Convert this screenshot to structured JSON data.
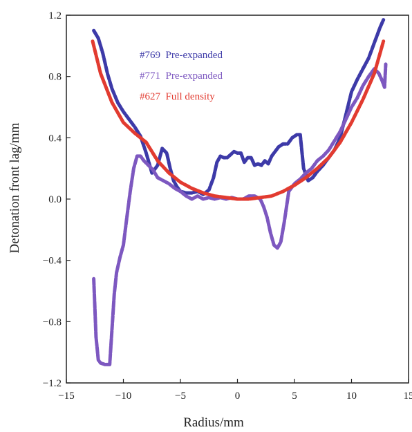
{
  "chart_data": {
    "type": "line",
    "xlabel": "Radius/mm",
    "ylabel": "Detonation front lag/mm",
    "xlim": [
      -15,
      15
    ],
    "ylim": [
      -1.2,
      1.2
    ],
    "xticks": [
      -15,
      -10,
      -5,
      0,
      5,
      10,
      15
    ],
    "yticks": [
      -1.2,
      -0.8,
      -0.4,
      0.0,
      0.4,
      0.8,
      1.2
    ],
    "xtick_labels": [
      "−15",
      "−10",
      "−5",
      "0",
      "5",
      "10",
      "15"
    ],
    "ytick_labels": [
      "−1.2",
      "−0.8",
      "−0.4",
      "0.0",
      "0.4",
      "0.8",
      "1.2"
    ],
    "grid": false,
    "legend_position": "top-center",
    "series": [
      {
        "name": "#769  Pre-expanded",
        "color": "#3d3aa8",
        "x": [
          -12.6,
          -12.2,
          -11.8,
          -11.4,
          -11.0,
          -10.5,
          -10.0,
          -9.5,
          -9.0,
          -8.5,
          -8.0,
          -7.5,
          -7.0,
          -6.6,
          -6.2,
          -5.9,
          -5.6,
          -5.3,
          -5.0,
          -4.5,
          -4.0,
          -3.5,
          -3.0,
          -2.5,
          -2.1,
          -1.8,
          -1.5,
          -1.2,
          -0.9,
          -0.6,
          -0.3,
          0.0,
          0.3,
          0.6,
          0.9,
          1.2,
          1.5,
          1.8,
          2.1,
          2.4,
          2.7,
          3.0,
          3.3,
          3.6,
          4.0,
          4.4,
          4.8,
          5.2,
          5.5,
          5.8,
          6.2,
          6.6,
          7.0,
          7.5,
          8.0,
          8.5,
          9.0,
          9.5,
          10.0,
          10.5,
          11.0,
          11.5,
          12.0,
          12.5,
          12.8
        ],
        "y": [
          1.1,
          1.05,
          0.95,
          0.82,
          0.72,
          0.63,
          0.57,
          0.52,
          0.47,
          0.41,
          0.3,
          0.17,
          0.22,
          0.33,
          0.3,
          0.2,
          0.12,
          0.08,
          0.05,
          0.04,
          0.04,
          0.05,
          0.03,
          0.06,
          0.14,
          0.24,
          0.28,
          0.27,
          0.27,
          0.29,
          0.31,
          0.3,
          0.3,
          0.24,
          0.27,
          0.27,
          0.22,
          0.23,
          0.22,
          0.25,
          0.23,
          0.28,
          0.31,
          0.34,
          0.36,
          0.36,
          0.4,
          0.42,
          0.42,
          0.2,
          0.12,
          0.14,
          0.18,
          0.22,
          0.27,
          0.32,
          0.4,
          0.55,
          0.7,
          0.78,
          0.85,
          0.92,
          1.02,
          1.12,
          1.17
        ]
      },
      {
        "name": "#771  Pre-expanded",
        "color": "#7d58c0",
        "x": [
          -12.6,
          -12.4,
          -12.2,
          -12.0,
          -11.6,
          -11.2,
          -11.0,
          -10.8,
          -10.6,
          -10.3,
          -10.0,
          -9.7,
          -9.4,
          -9.1,
          -8.8,
          -8.5,
          -8.2,
          -7.8,
          -7.4,
          -7.0,
          -6.5,
          -6.0,
          -5.5,
          -5.0,
          -4.5,
          -4.0,
          -3.5,
          -3.0,
          -2.5,
          -2.0,
          -1.5,
          -1.0,
          -0.5,
          0.0,
          0.5,
          1.0,
          1.5,
          2.0,
          2.3,
          2.6,
          2.9,
          3.2,
          3.5,
          3.8,
          4.1,
          4.5,
          5.0,
          5.5,
          6.0,
          6.5,
          7.0,
          7.5,
          8.0,
          8.5,
          9.0,
          9.5,
          10.0,
          10.5,
          11.0,
          11.5,
          12.0,
          12.4,
          12.7,
          12.9,
          13.0
        ],
        "y": [
          -0.52,
          -0.9,
          -1.05,
          -1.07,
          -1.08,
          -1.08,
          -0.85,
          -0.62,
          -0.48,
          -0.38,
          -0.3,
          -0.12,
          0.05,
          0.2,
          0.28,
          0.28,
          0.25,
          0.22,
          0.19,
          0.14,
          0.12,
          0.1,
          0.07,
          0.05,
          0.02,
          0.0,
          0.02,
          0.0,
          0.01,
          0.0,
          0.01,
          0.0,
          0.01,
          0.0,
          0.0,
          0.02,
          0.02,
          0.0,
          -0.05,
          -0.12,
          -0.22,
          -0.3,
          -0.32,
          -0.28,
          -0.15,
          0.05,
          0.1,
          0.13,
          0.17,
          0.2,
          0.25,
          0.28,
          0.32,
          0.38,
          0.44,
          0.52,
          0.6,
          0.66,
          0.74,
          0.8,
          0.85,
          0.82,
          0.77,
          0.73,
          0.88
        ]
      },
      {
        "name": "#627  Full density",
        "color": "#e23b30",
        "x": [
          -12.7,
          -12.0,
          -11.0,
          -10.0,
          -9.0,
          -8.0,
          -7.0,
          -6.0,
          -5.0,
          -4.0,
          -3.0,
          -2.0,
          -1.0,
          0.0,
          1.0,
          2.0,
          3.0,
          4.0,
          5.0,
          6.0,
          7.0,
          8.0,
          9.0,
          10.0,
          11.0,
          12.0,
          12.8
        ],
        "y": [
          1.03,
          0.82,
          0.63,
          0.5,
          0.43,
          0.37,
          0.25,
          0.17,
          0.11,
          0.07,
          0.04,
          0.02,
          0.01,
          0.0,
          0.0,
          0.01,
          0.02,
          0.05,
          0.09,
          0.14,
          0.2,
          0.27,
          0.37,
          0.5,
          0.65,
          0.82,
          1.03
        ]
      }
    ]
  }
}
